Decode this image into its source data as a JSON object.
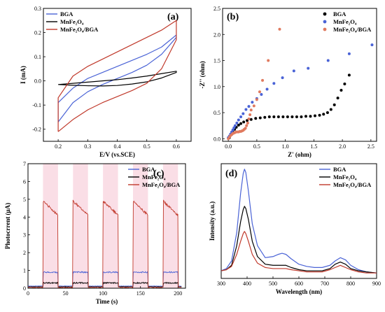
{
  "colors": {
    "bga": "#4a63d6",
    "mnfe2o4": "#000000",
    "composite": "#c0392b",
    "composite_light": "#e07a5f",
    "band": "#f3b6c8"
  },
  "chart_data": [
    {
      "type": "line",
      "panel_label": "(a)",
      "xlabel": "E/V (vs.SCE)",
      "ylabel": "I (mA)",
      "xlim": [
        0.15,
        0.65
      ],
      "ylim": [
        -0.25,
        0.3
      ],
      "xticks": [
        "0.2",
        "0.3",
        "0.4",
        "0.5",
        "0.6"
      ],
      "yticks": [
        "-0.2",
        "-0.1",
        "0.0",
        "0.1",
        "0.2",
        "0.3"
      ],
      "legend_position": "top-left",
      "series": [
        {
          "name": "BGA",
          "color_key": "bga",
          "x": [
            0.2,
            0.25,
            0.3,
            0.35,
            0.4,
            0.45,
            0.5,
            0.55,
            0.6,
            0.6,
            0.55,
            0.5,
            0.45,
            0.4,
            0.35,
            0.3,
            0.25,
            0.2,
            0.2
          ],
          "y": [
            -0.17,
            -0.09,
            -0.045,
            -0.015,
            0.01,
            0.035,
            0.065,
            0.11,
            0.18,
            0.19,
            0.14,
            0.11,
            0.085,
            0.06,
            0.035,
            0.01,
            -0.03,
            -0.09,
            -0.17
          ]
        },
        {
          "name": "MnFe₂O₄",
          "color_key": "mnfe2o4",
          "x": [
            0.2,
            0.25,
            0.3,
            0.35,
            0.4,
            0.45,
            0.5,
            0.55,
            0.6,
            0.6,
            0.55,
            0.5,
            0.45,
            0.4,
            0.35,
            0.3,
            0.25,
            0.2,
            0.2
          ],
          "y": [
            -0.015,
            -0.018,
            -0.02,
            -0.021,
            -0.019,
            -0.013,
            -0.004,
            0.012,
            0.035,
            0.04,
            0.03,
            0.02,
            0.012,
            0.005,
            0.0,
            -0.005,
            -0.01,
            -0.015,
            -0.015
          ]
        },
        {
          "name": "MnFe₂O₄/BGA",
          "color_key": "composite",
          "x": [
            0.2,
            0.25,
            0.3,
            0.35,
            0.4,
            0.45,
            0.5,
            0.55,
            0.6,
            0.6,
            0.55,
            0.5,
            0.45,
            0.4,
            0.35,
            0.3,
            0.25,
            0.2,
            0.2
          ],
          "y": [
            -0.21,
            -0.16,
            -0.12,
            -0.09,
            -0.065,
            -0.04,
            -0.01,
            0.05,
            0.17,
            0.25,
            0.21,
            0.18,
            0.15,
            0.12,
            0.09,
            0.06,
            0.02,
            -0.07,
            -0.21
          ]
        }
      ]
    },
    {
      "type": "scatter",
      "panel_label": "(b)",
      "xlabel": "Z' (ohm)",
      "ylabel": "-Z'' (ohm)",
      "xlim": [
        -0.1,
        2.6
      ],
      "ylim": [
        -0.05,
        2.5
      ],
      "xticks": [
        "0.0",
        "0.5",
        "1.0",
        "1.5",
        "2.0",
        "2.5"
      ],
      "yticks": [
        "0.0",
        "0.5",
        "1.0",
        "1.5",
        "2.0",
        "2.5"
      ],
      "legend_position": "top-right",
      "series": [
        {
          "name": "BGA",
          "color_key": "mnfe2o4",
          "x": [
            0.02,
            0.05,
            0.08,
            0.11,
            0.14,
            0.18,
            0.22,
            0.27,
            0.33,
            0.4,
            0.48,
            0.56,
            0.64,
            0.72,
            0.8,
            0.88,
            0.96,
            1.04,
            1.12,
            1.2,
            1.28,
            1.36,
            1.44,
            1.52,
            1.6,
            1.67,
            1.74,
            1.8,
            1.86,
            1.92,
            1.98,
            2.04,
            2.12
          ],
          "y": [
            0.02,
            0.08,
            0.13,
            0.18,
            0.22,
            0.26,
            0.29,
            0.32,
            0.35,
            0.37,
            0.39,
            0.4,
            0.41,
            0.42,
            0.42,
            0.42,
            0.42,
            0.42,
            0.42,
            0.42,
            0.42,
            0.43,
            0.43,
            0.44,
            0.45,
            0.47,
            0.5,
            0.56,
            0.65,
            0.78,
            0.93,
            1.05,
            1.22
          ]
        },
        {
          "name": "MnFe₂O₄",
          "color_key": "bga",
          "x": [
            0.0,
            0.02,
            0.04,
            0.06,
            0.08,
            0.1,
            0.12,
            0.15,
            0.18,
            0.22,
            0.26,
            0.31,
            0.36,
            0.42,
            0.5,
            0.58,
            0.68,
            0.8,
            0.95,
            1.15,
            1.4,
            1.75,
            2.12,
            2.52
          ],
          "y": [
            0.02,
            0.05,
            0.09,
            0.13,
            0.17,
            0.21,
            0.25,
            0.3,
            0.36,
            0.42,
            0.48,
            0.56,
            0.62,
            0.7,
            0.77,
            0.85,
            0.95,
            1.06,
            1.17,
            1.3,
            1.35,
            1.5,
            1.63,
            1.8
          ]
        },
        {
          "name": "MnFe₂O₄/BGA",
          "color_key": "composite_light",
          "x": [
            0.0,
            0.02,
            0.04,
            0.06,
            0.08,
            0.1,
            0.12,
            0.14,
            0.16,
            0.18,
            0.2,
            0.22,
            0.24,
            0.26,
            0.28,
            0.3,
            0.32,
            0.34,
            0.36,
            0.38,
            0.4,
            0.45,
            0.5,
            0.55,
            0.6,
            0.7,
            0.9
          ],
          "y": [
            0.0,
            0.03,
            0.06,
            0.08,
            0.1,
            0.11,
            0.12,
            0.13,
            0.13,
            0.13,
            0.14,
            0.14,
            0.15,
            0.16,
            0.18,
            0.2,
            0.25,
            0.3,
            0.38,
            0.46,
            0.55,
            0.63,
            0.75,
            0.9,
            1.12,
            1.5,
            2.1
          ]
        }
      ]
    },
    {
      "type": "line",
      "panel_label": "(c)",
      "xlabel": "Time (s)",
      "ylabel": "Photocrrent (μA)",
      "xlim": [
        0,
        210
      ],
      "ylim": [
        0,
        7
      ],
      "xticks": [
        "0",
        "50",
        "100",
        "150",
        "200"
      ],
      "yticks": [
        "0",
        "1",
        "2",
        "3",
        "4",
        "5",
        "6",
        "7"
      ],
      "legend_position": "top-right",
      "light_on_periods": [
        [
          20,
          40
        ],
        [
          60,
          80
        ],
        [
          100,
          120
        ],
        [
          140,
          160
        ],
        [
          180,
          200
        ]
      ],
      "series": [
        {
          "name": "BGA",
          "color_key": "bga",
          "on_value": 0.9,
          "off_value": 0.12
        },
        {
          "name": "MnFe₂O₄",
          "color_key": "mnfe2o4",
          "on_value": 0.3,
          "off_value": 0.08
        },
        {
          "name": "MnFe₂O₄/BGA",
          "color_key": "composite",
          "on_start": 4.9,
          "on_end": 4.1,
          "off_value": 0.05
        }
      ]
    },
    {
      "type": "line",
      "panel_label": "(d)",
      "xlabel": "Wavelength (nm)",
      "ylabel": "Intensity (a.u.)",
      "xlim": [
        300,
        900
      ],
      "ylim": [
        0,
        1.05
      ],
      "xticks": [
        "300",
        "400",
        "500",
        "600",
        "700",
        "800",
        "900"
      ],
      "legend_position": "top-right",
      "series": [
        {
          "name": "BGA",
          "color_key": "bga",
          "x": [
            300,
            320,
            340,
            360,
            375,
            385,
            390,
            395,
            405,
            420,
            440,
            470,
            500,
            520,
            535,
            550,
            570,
            600,
            630,
            660,
            690,
            720,
            740,
            760,
            780,
            800,
            830,
            860,
            900
          ],
          "y": [
            0.07,
            0.09,
            0.16,
            0.42,
            0.78,
            0.96,
            1.0,
            0.97,
            0.8,
            0.5,
            0.3,
            0.19,
            0.2,
            0.22,
            0.23,
            0.22,
            0.18,
            0.13,
            0.11,
            0.1,
            0.1,
            0.12,
            0.16,
            0.19,
            0.17,
            0.12,
            0.08,
            0.06,
            0.05
          ]
        },
        {
          "name": "MnFe₂O₄",
          "color_key": "mnfe2o4",
          "x": [
            300,
            320,
            340,
            360,
            375,
            385,
            390,
            395,
            405,
            420,
            440,
            470,
            500,
            520,
            535,
            550,
            570,
            600,
            630,
            660,
            690,
            720,
            740,
            760,
            780,
            800,
            830,
            860,
            900
          ],
          "y": [
            0.07,
            0.08,
            0.12,
            0.3,
            0.52,
            0.63,
            0.66,
            0.64,
            0.54,
            0.34,
            0.2,
            0.13,
            0.12,
            0.12,
            0.12,
            0.12,
            0.1,
            0.08,
            0.07,
            0.07,
            0.07,
            0.09,
            0.13,
            0.15,
            0.13,
            0.09,
            0.07,
            0.06,
            0.05
          ]
        },
        {
          "name": "MnFe₂O₄/BGA",
          "color_key": "composite",
          "x": [
            300,
            320,
            340,
            360,
            375,
            385,
            390,
            395,
            405,
            420,
            440,
            470,
            500,
            520,
            535,
            550,
            570,
            600,
            630,
            660,
            690,
            720,
            740,
            760,
            780,
            800,
            830,
            860,
            900
          ],
          "y": [
            0.07,
            0.08,
            0.11,
            0.22,
            0.34,
            0.41,
            0.43,
            0.41,
            0.34,
            0.22,
            0.14,
            0.1,
            0.09,
            0.09,
            0.09,
            0.09,
            0.08,
            0.07,
            0.06,
            0.06,
            0.06,
            0.08,
            0.1,
            0.12,
            0.1,
            0.08,
            0.06,
            0.05,
            0.05
          ]
        }
      ]
    }
  ]
}
